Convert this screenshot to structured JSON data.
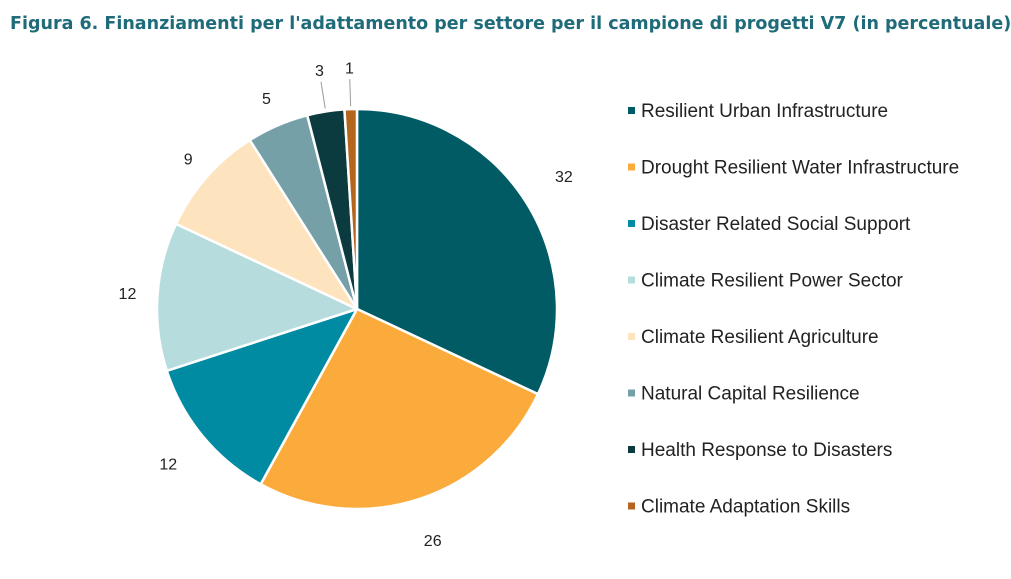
{
  "chart_data": {
    "type": "pie",
    "title": "Figura 6. Finanziamenti per l'adattamento per settore per il campione di progetti V7 (in percentuale)",
    "legend_position": "right",
    "slices": [
      {
        "label": "Resilient Urban Infrastructure",
        "value": 32,
        "color": "#005b65"
      },
      {
        "label": "Drought Resilient Water Infrastructure",
        "value": 26,
        "color": "#fbab3b"
      },
      {
        "label": "Disaster Related Social Support",
        "value": 12,
        "color": "#008ba3"
      },
      {
        "label": "Climate Resilient Power Sector",
        "value": 12,
        "color": "#b6dcde"
      },
      {
        "label": "Climate Resilient Agriculture",
        "value": 9,
        "color": "#fde3be"
      },
      {
        "label": "Natural Capital Resilience",
        "value": 5,
        "color": "#75a0a8"
      },
      {
        "label": "Health Response to Disasters",
        "value": 3,
        "color": "#0b3a3f"
      },
      {
        "label": "Climate Adaptation Skills",
        "value": 1,
        "color": "#b5651d"
      }
    ]
  }
}
